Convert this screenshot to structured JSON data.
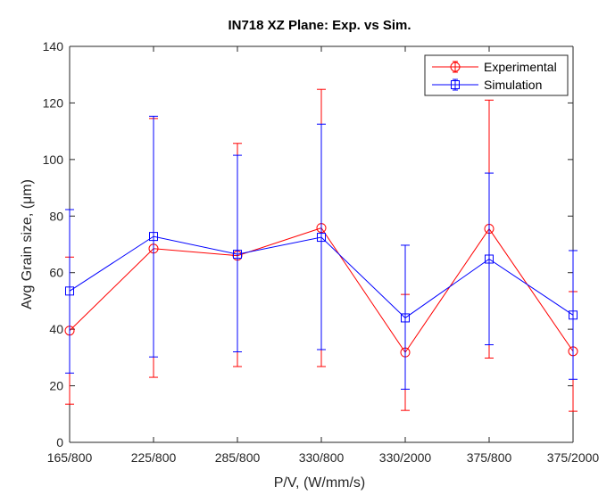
{
  "chart_data": {
    "type": "line",
    "title": "IN718 XZ Plane: Exp. vs Sim.",
    "xlabel": "P/V, (W/mm/s)",
    "ylabel": "Avg Grain size, (μm)",
    "categories": [
      "165/800",
      "225/800",
      "285/800",
      "330/800",
      "330/2000",
      "375/800",
      "375/2000"
    ],
    "ylim": [
      0,
      140
    ],
    "yticks": [
      0,
      20,
      40,
      60,
      80,
      100,
      120,
      140
    ],
    "grid": false,
    "legend_position": "top-right",
    "series": [
      {
        "name": "Experimental",
        "marker": "circle",
        "color": "#ff0000",
        "values": [
          39.5,
          68.5,
          66.0,
          75.8,
          31.8,
          75.5,
          32.2
        ],
        "err_low": [
          13.5,
          23.0,
          26.8,
          26.8,
          11.3,
          29.8,
          11.0
        ],
        "err_high": [
          65.5,
          114.5,
          105.7,
          124.8,
          52.3,
          121.0,
          53.3
        ]
      },
      {
        "name": "Simulation",
        "marker": "square",
        "color": "#0000ff",
        "values": [
          53.5,
          72.8,
          66.5,
          72.5,
          44.0,
          64.8,
          45.0
        ],
        "err_low": [
          24.5,
          30.2,
          32.0,
          32.8,
          18.8,
          34.5,
          22.3
        ],
        "err_high": [
          82.3,
          115.3,
          101.5,
          112.5,
          69.7,
          95.2,
          67.8
        ]
      }
    ]
  }
}
